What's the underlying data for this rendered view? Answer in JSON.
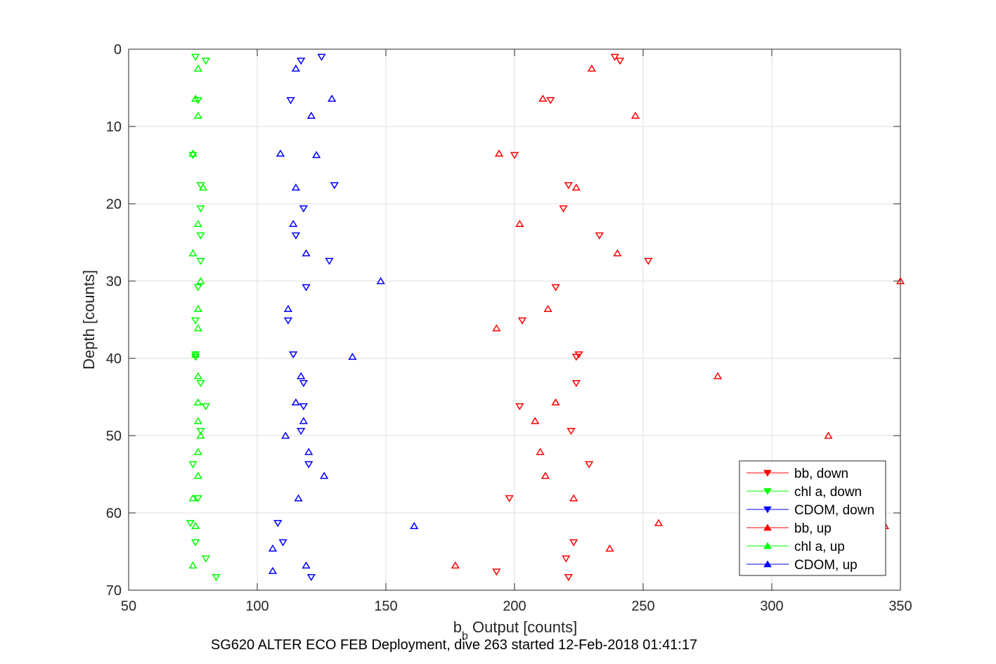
{
  "chart_data": {
    "type": "scatter",
    "title": "SG620 ALTER ECO FEB Deployment, dive 263 started 12-Feb-2018 01:41:17",
    "xlabel_main": "b",
    "xlabel_sub": "b",
    "xlabel_rest": " Output [counts]",
    "ylabel": "Depth [counts]",
    "xlim": [
      50,
      350
    ],
    "ylim": [
      0,
      70
    ],
    "y_reversed": true,
    "grid": true,
    "legend_position": "bottom-right",
    "x_ticks": [
      50,
      100,
      150,
      200,
      250,
      300,
      350
    ],
    "y_ticks": [
      0,
      10,
      20,
      30,
      40,
      50,
      60,
      70
    ],
    "series": [
      {
        "name": "bb, down",
        "color": "#ff0000",
        "marker": "triangle-down",
        "x": [
          239,
          241,
          214,
          200,
          221,
          219,
          233,
          252,
          216,
          203,
          225,
          224,
          224,
          202,
          222,
          229,
          198,
          223,
          220,
          193,
          221
        ],
        "y": [
          1.0,
          1.5,
          6.6,
          13.7,
          17.6,
          20.6,
          24.1,
          27.4,
          30.8,
          35.1,
          39.5,
          39.8,
          43.2,
          46.2,
          49.4,
          53.7,
          58.1,
          63.8,
          65.9,
          67.6,
          68.3
        ]
      },
      {
        "name": "chl a, down",
        "color": "#00ff00",
        "marker": "triangle-down",
        "x": [
          76,
          80,
          77,
          75,
          78,
          78,
          78,
          78,
          77,
          76,
          76,
          76,
          78,
          80,
          78,
          75,
          77,
          74,
          76,
          80,
          84
        ],
        "y": [
          1.0,
          1.5,
          6.6,
          13.7,
          17.6,
          20.6,
          24.1,
          27.4,
          30.8,
          35.1,
          39.5,
          39.8,
          43.2,
          46.2,
          49.4,
          53.7,
          58.1,
          61.3,
          63.8,
          65.9,
          68.3
        ]
      },
      {
        "name": "CDOM, down",
        "color": "#0000ff",
        "marker": "triangle-down",
        "x": [
          125,
          117,
          113,
          130,
          118,
          115,
          128,
          119,
          112,
          114,
          118,
          118,
          117,
          120,
          108,
          110,
          121
        ],
        "y": [
          1.0,
          1.5,
          6.6,
          17.6,
          20.6,
          24.1,
          27.4,
          30.8,
          35.1,
          39.5,
          43.2,
          46.2,
          49.4,
          53.7,
          61.3,
          63.8,
          68.3
        ]
      },
      {
        "name": "bb, up",
        "color": "#ff0000",
        "marker": "triangle-up",
        "x": [
          230,
          211,
          247,
          194,
          224,
          202,
          240,
          350,
          213,
          193,
          279,
          216,
          208,
          322,
          210,
          212,
          223,
          256,
          344,
          237,
          177
        ],
        "y": [
          2.5,
          6.4,
          8.6,
          13.5,
          17.9,
          22.6,
          26.4,
          30.0,
          33.6,
          36.1,
          42.3,
          45.7,
          48.1,
          50.0,
          52.1,
          55.2,
          58.1,
          61.3,
          61.7,
          64.6,
          66.8
        ]
      },
      {
        "name": "chl a, up",
        "color": "#00ff00",
        "marker": "triangle-up",
        "x": [
          77,
          76,
          77,
          75,
          79,
          77,
          75,
          78,
          77,
          77,
          76,
          77,
          77,
          77,
          78,
          77,
          77,
          75,
          76,
          75
        ],
        "y": [
          2.5,
          6.4,
          8.6,
          13.5,
          17.9,
          22.6,
          26.4,
          30.0,
          33.6,
          36.1,
          39.5,
          42.3,
          45.7,
          48.1,
          50.0,
          52.1,
          55.2,
          58.1,
          61.7,
          66.8
        ]
      },
      {
        "name": "CDOM, up",
        "color": "#0000ff",
        "marker": "triangle-up",
        "x": [
          115,
          129,
          121,
          109,
          123,
          115,
          114,
          119,
          148,
          112,
          137,
          117,
          115,
          118,
          111,
          120,
          126,
          116,
          161,
          106,
          119,
          106
        ],
        "y": [
          2.5,
          6.4,
          8.6,
          13.5,
          13.7,
          17.9,
          22.6,
          26.4,
          30.0,
          33.6,
          39.8,
          42.3,
          45.7,
          48.1,
          50.0,
          52.1,
          55.2,
          58.1,
          61.7,
          64.6,
          66.8,
          67.5
        ]
      }
    ]
  }
}
